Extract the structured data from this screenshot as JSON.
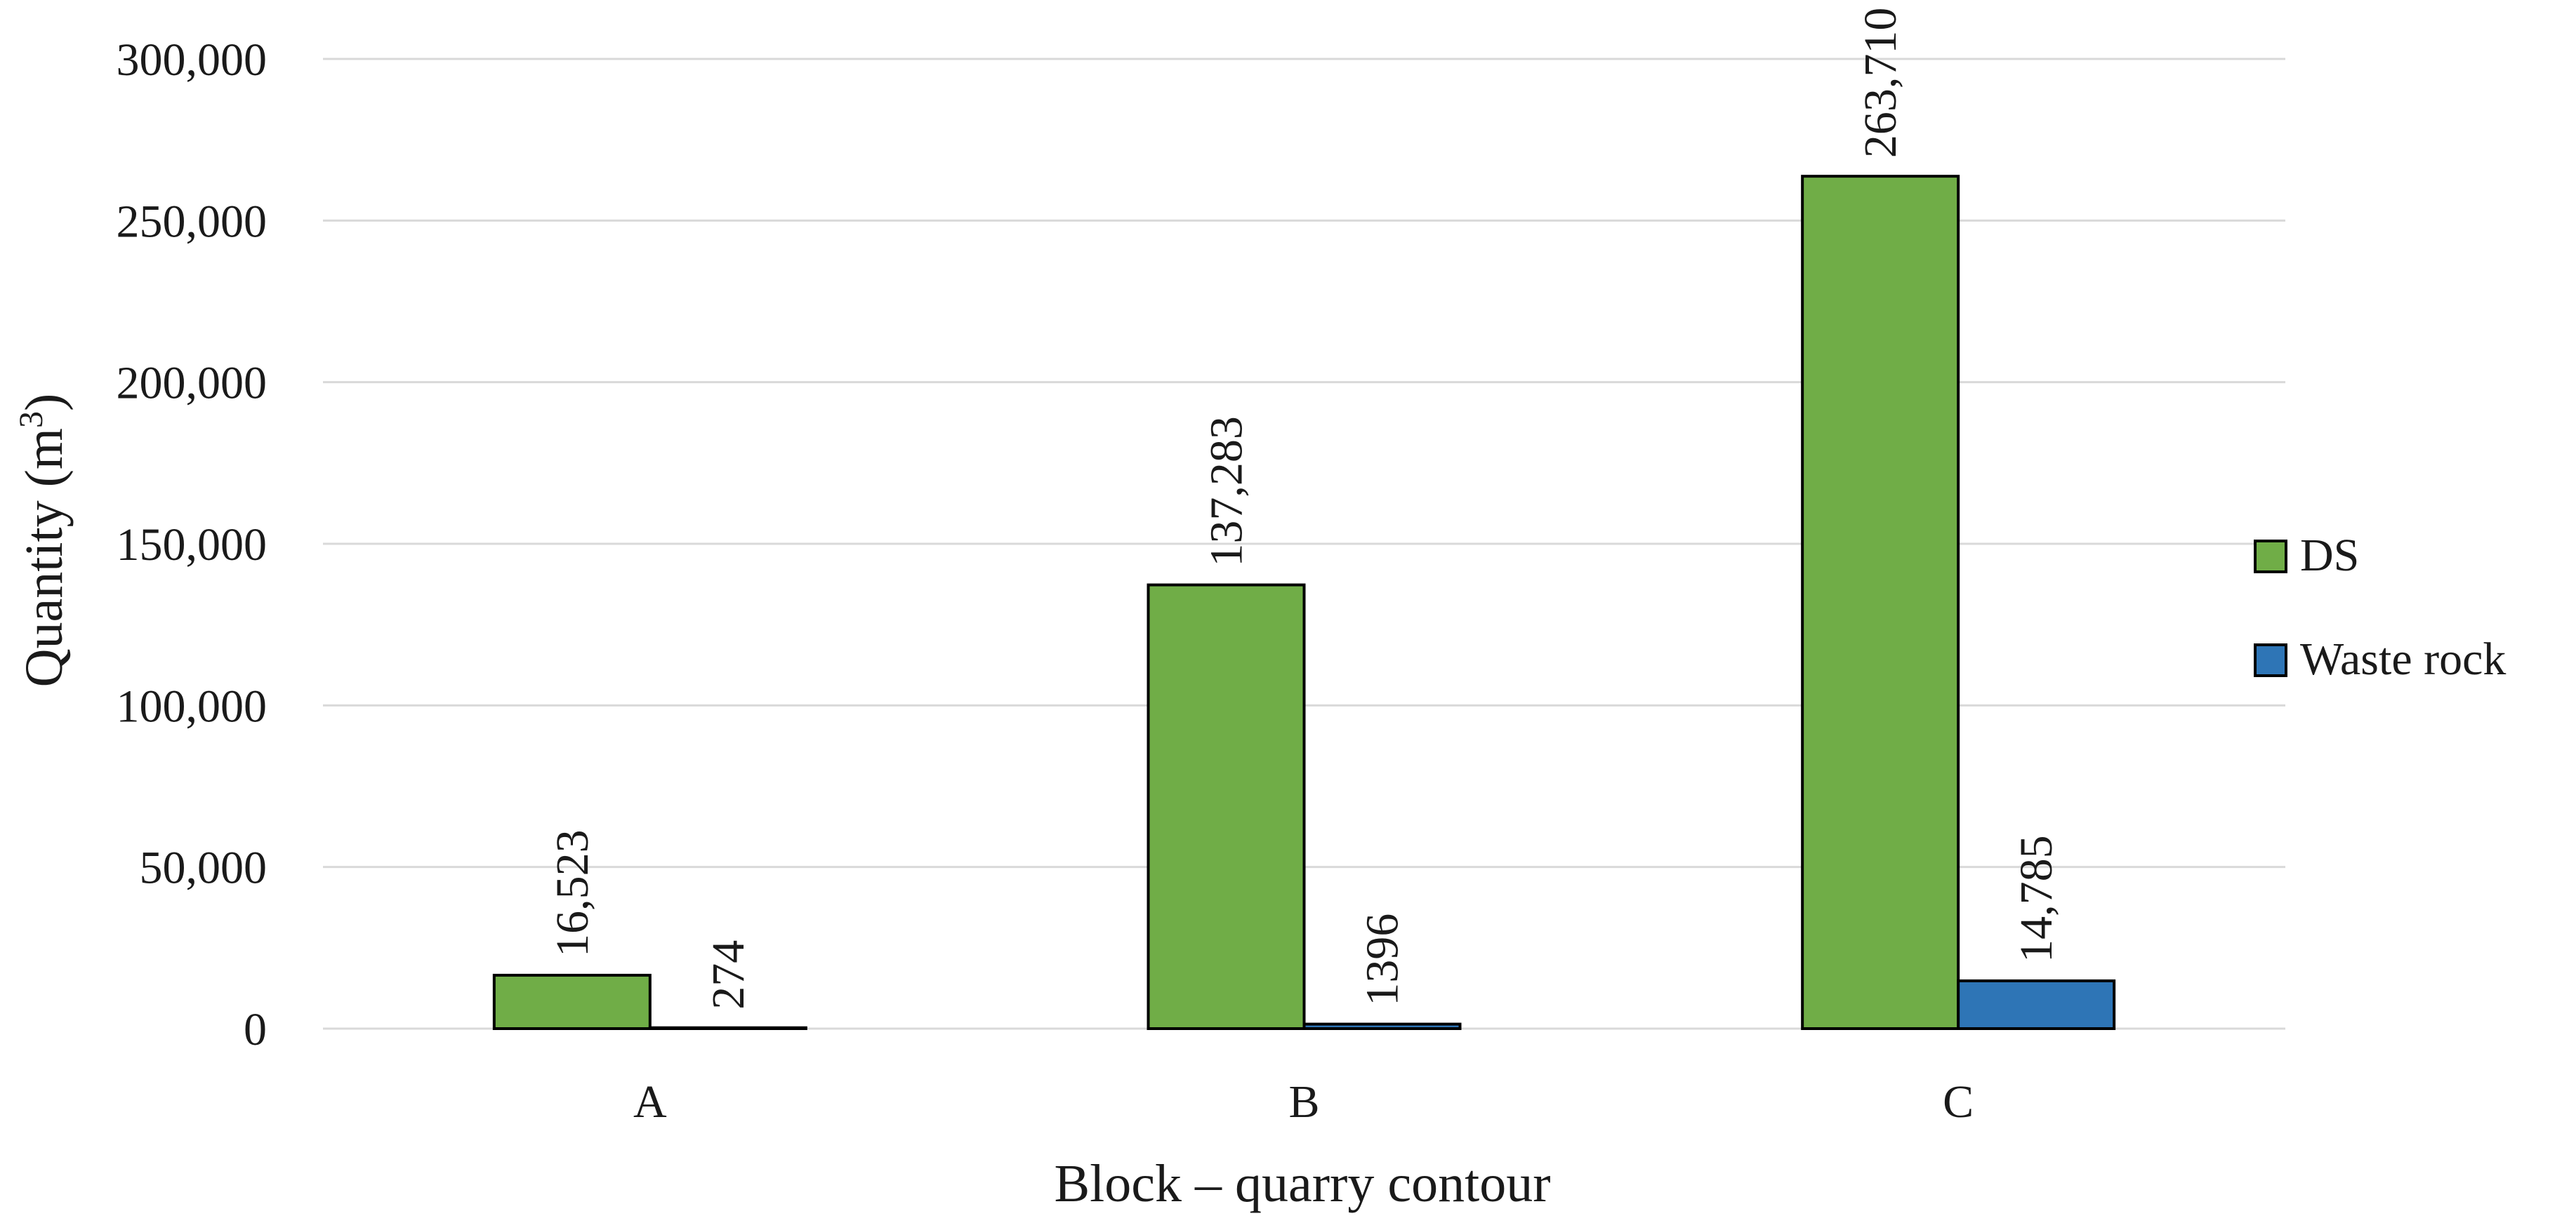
{
  "chart_data": {
    "type": "bar",
    "title": "",
    "xlabel": "Block – quarry contour",
    "ylabel": "Quantity (m",
    "ylabel_superscript": "3",
    "ylabel_suffix": ")",
    "categories": [
      "A",
      "B",
      "C"
    ],
    "series": [
      {
        "name": "DS",
        "color": "#70ad47",
        "values": [
          16523,
          137283,
          263710
        ],
        "labels": [
          "16,523",
          "137,283",
          "263,710"
        ]
      },
      {
        "name": "Waste rock",
        "color": "#2e75b6",
        "values": [
          274,
          1396,
          14785
        ],
        "labels": [
          "274",
          "1396",
          "14,785"
        ]
      }
    ],
    "ylim": [
      0,
      300000
    ],
    "yticks": [
      0,
      50000,
      100000,
      150000,
      200000,
      250000,
      300000
    ],
    "ytick_labels": [
      "0",
      "50,000",
      "100,000",
      "150,000",
      "200,000",
      "250,000",
      "300,000"
    ],
    "grid": true,
    "legend_position": "right"
  }
}
